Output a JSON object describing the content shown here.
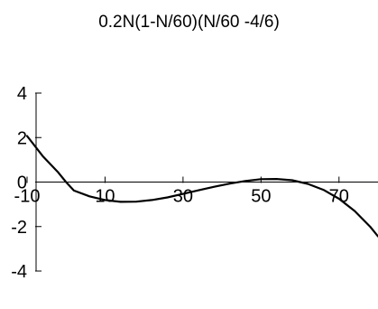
{
  "chart_data": {
    "type": "line",
    "title": "0.2N(1-N/60)(N/60 -4/6)",
    "xlabel": "",
    "ylabel": "",
    "xlim": [
      -10,
      80
    ],
    "ylim": [
      -4,
      4
    ],
    "x_ticks": [
      -10,
      10,
      30,
      50,
      70
    ],
    "x_tick_labels": [
      "-10",
      "10",
      "30",
      "50",
      "70"
    ],
    "y_ticks": [
      4,
      2,
      0,
      -2,
      -4
    ],
    "y_tick_labels": [
      "4",
      "2",
      "0",
      "-2",
      "-4"
    ],
    "grid": false,
    "legend": "none",
    "series": [
      {
        "x": [
          -10,
          -6,
          -2,
          0,
          2,
          6,
          10,
          14,
          18,
          22,
          26,
          30,
          34,
          38,
          42,
          46,
          50,
          54,
          58,
          62,
          66,
          70,
          74,
          78,
          80
        ],
        "y": [
          2.07,
          1.17,
          0.43,
          0,
          -0.38,
          -0.64,
          -0.81,
          -0.89,
          -0.88,
          -0.81,
          -0.69,
          -0.53,
          -0.37,
          -0.21,
          -0.07,
          0.05,
          0.13,
          0.14,
          0.08,
          -0.08,
          -0.35,
          -0.75,
          -1.3,
          -2.01,
          -2.44
        ],
        "color": "#000000"
      }
    ]
  }
}
